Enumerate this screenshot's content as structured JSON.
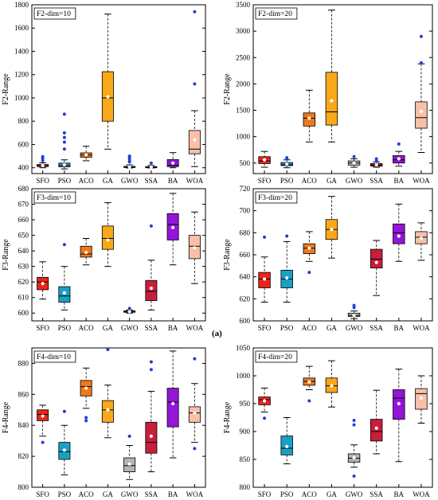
{
  "figure_label": "(a)",
  "chart_data": [
    {
      "type": "box",
      "title": "F2-dim=10",
      "ylabel": "F2-Range",
      "xlabel": "",
      "ylim": [
        350,
        1800
      ],
      "yticks": [
        400,
        600,
        800,
        1000,
        1200,
        1400,
        1600,
        1800
      ],
      "categories": [
        "SFO",
        "PSO",
        "ACO",
        "GA",
        "GWO",
        "SSA",
        "BA",
        "WOA"
      ],
      "colors": [
        "#e8241c",
        "#1aa0c4",
        "#f07818",
        "#f8a818",
        "#b4b4b4",
        "#c81e3c",
        "#9414d8",
        "#f8c0a8"
      ],
      "boxes": [
        {
          "whislo": 400,
          "q1": 410,
          "med": 418,
          "q3": 428,
          "whishi": 442,
          "mean": 420,
          "outliers": [
            460,
            480,
            495
          ]
        },
        {
          "whislo": 390,
          "q1": 408,
          "med": 420,
          "q3": 440,
          "whishi": 468,
          "mean": 425,
          "outliers": [
            560,
            620,
            660,
            700,
            860
          ]
        },
        {
          "whislo": 460,
          "q1": 490,
          "med": 510,
          "q3": 528,
          "whishi": 585,
          "mean": 512,
          "outliers": []
        },
        {
          "whislo": 560,
          "q1": 800,
          "med": 1000,
          "q3": 1225,
          "whishi": 1720,
          "mean": 1010,
          "outliers": []
        },
        {
          "whislo": 398,
          "q1": 402,
          "med": 406,
          "q3": 412,
          "whishi": 425,
          "mean": 406,
          "outliers": [
            450,
            470,
            490,
            500
          ]
        },
        {
          "whislo": 398,
          "q1": 402,
          "med": 405,
          "q3": 410,
          "whishi": 420,
          "mean": 405,
          "outliers": [
            440
          ]
        },
        {
          "whislo": 400,
          "q1": 410,
          "med": 420,
          "q3": 470,
          "whishi": 530,
          "mean": 440,
          "outliers": []
        },
        {
          "whislo": 410,
          "q1": 520,
          "med": 560,
          "q3": 720,
          "whishi": 890,
          "mean": 640,
          "outliers": [
            1120,
            1740
          ]
        }
      ]
    },
    {
      "type": "box",
      "title": "F2-dim=20",
      "ylabel": "F2-Range",
      "xlabel": "",
      "ylim": [
        300,
        3500
      ],
      "yticks": [
        500,
        1000,
        1500,
        2000,
        2500,
        3000,
        3500
      ],
      "categories": [
        "SFO",
        "PSO",
        "ACO",
        "GA",
        "GWO",
        "SSA",
        "BA",
        "WOA"
      ],
      "colors": [
        "#e8241c",
        "#1aa0c4",
        "#f07818",
        "#f8a818",
        "#b4b4b4",
        "#c81e3c",
        "#9414d8",
        "#f8c0a8"
      ],
      "boxes": [
        {
          "whislo": 420,
          "q1": 490,
          "med": 540,
          "q3": 620,
          "whishi": 720,
          "mean": 560,
          "outliers": []
        },
        {
          "whislo": 410,
          "q1": 450,
          "med": 470,
          "q3": 510,
          "whishi": 560,
          "mean": 480,
          "outliers": [
            580,
            600
          ]
        },
        {
          "whislo": 900,
          "q1": 1200,
          "med": 1350,
          "q3": 1450,
          "whishi": 1880,
          "mean": 1350,
          "outliers": []
        },
        {
          "whislo": 900,
          "q1": 1220,
          "med": 1470,
          "q3": 2220,
          "whishi": 3400,
          "mean": 1680,
          "outliers": []
        },
        {
          "whislo": 420,
          "q1": 460,
          "med": 500,
          "q3": 540,
          "whishi": 580,
          "mean": 500,
          "outliers": [
            620
          ]
        },
        {
          "whislo": 420,
          "q1": 440,
          "med": 460,
          "q3": 490,
          "whishi": 520,
          "mean": 465,
          "outliers": [
            540,
            580
          ]
        },
        {
          "whislo": 440,
          "q1": 500,
          "med": 560,
          "q3": 640,
          "whishi": 720,
          "mean": 580,
          "outliers": [
            860
          ]
        },
        {
          "whislo": 700,
          "q1": 1160,
          "med": 1360,
          "q3": 1660,
          "whishi": 2380,
          "mean": 1480,
          "outliers": [
            2400,
            2900
          ]
        }
      ]
    },
    {
      "type": "box",
      "title": "F3-dim=10",
      "ylabel": "F3-Range",
      "xlabel": "",
      "ylim": [
        595,
        680
      ],
      "yticks": [
        600,
        610,
        620,
        630,
        640,
        650,
        660,
        670,
        680
      ],
      "categories": [
        "SFO",
        "PSO",
        "ACO",
        "GA",
        "GWO",
        "SSA",
        "BA",
        "WOA"
      ],
      "colors": [
        "#e8241c",
        "#1aa0c4",
        "#f07818",
        "#f8a818",
        "#b4b4b4",
        "#c81e3c",
        "#9414d8",
        "#f8c0a8"
      ],
      "boxes": [
        {
          "whislo": 609,
          "q1": 615,
          "med": 620,
          "q3": 623,
          "whishi": 633,
          "mean": 619,
          "outliers": []
        },
        {
          "whislo": 602,
          "q1": 607,
          "med": 611,
          "q3": 617,
          "whishi": 630,
          "mean": 613,
          "outliers": [
            644
          ]
        },
        {
          "whislo": 631,
          "q1": 636,
          "med": 638,
          "q3": 643,
          "whishi": 648,
          "mean": 639,
          "outliers": []
        },
        {
          "whislo": 630,
          "q1": 641,
          "med": 648,
          "q3": 656,
          "whishi": 671,
          "mean": 647,
          "outliers": []
        },
        {
          "whislo": 600,
          "q1": 600.5,
          "med": 601,
          "q3": 601.5,
          "whishi": 602,
          "mean": 601,
          "outliers": [
            603
          ]
        },
        {
          "whislo": 602,
          "q1": 608,
          "med": 614,
          "q3": 621,
          "whishi": 634,
          "mean": 616,
          "outliers": [
            656
          ]
        },
        {
          "whislo": 631,
          "q1": 647,
          "med": 657,
          "q3": 664,
          "whishi": 677,
          "mean": 655,
          "outliers": []
        },
        {
          "whislo": 619,
          "q1": 635,
          "med": 643,
          "q3": 650,
          "whishi": 665,
          "mean": 642,
          "outliers": []
        }
      ]
    },
    {
      "type": "box",
      "title": "F3-dim=20",
      "ylabel": "F3-Range",
      "xlabel": "",
      "ylim": [
        600,
        720
      ],
      "yticks": [
        600,
        620,
        640,
        660,
        680,
        700,
        720
      ],
      "categories": [
        "SFO",
        "PSO",
        "ACO",
        "GA",
        "GWO",
        "SSA",
        "BA",
        "WOA"
      ],
      "colors": [
        "#e8241c",
        "#1aa0c4",
        "#f07818",
        "#f8a818",
        "#b4b4b4",
        "#c81e3c",
        "#9414d8",
        "#f8c0a8"
      ],
      "boxes": [
        {
          "whislo": 617,
          "q1": 630,
          "med": 638,
          "q3": 644,
          "whishi": 658,
          "mean": 638,
          "outliers": [
            676
          ]
        },
        {
          "whislo": 617,
          "q1": 630,
          "med": 638,
          "q3": 646,
          "whishi": 672,
          "mean": 639,
          "outliers": [
            677
          ]
        },
        {
          "whislo": 654,
          "q1": 661,
          "med": 666,
          "q3": 670,
          "whishi": 681,
          "mean": 666,
          "outliers": [
            644
          ]
        },
        {
          "whislo": 657,
          "q1": 674,
          "med": 683,
          "q3": 692,
          "whishi": 713,
          "mean": 683,
          "outliers": []
        },
        {
          "whislo": 602,
          "q1": 604,
          "med": 605,
          "q3": 607,
          "whishi": 609,
          "mean": 605,
          "outliers": [
            612,
            614
          ]
        },
        {
          "whislo": 623,
          "q1": 648,
          "med": 656,
          "q3": 665,
          "whishi": 673,
          "mean": 653,
          "outliers": []
        },
        {
          "whislo": 654,
          "q1": 670,
          "med": 680,
          "q3": 688,
          "whishi": 706,
          "mean": 677,
          "outliers": []
        },
        {
          "whislo": 655,
          "q1": 670,
          "med": 676,
          "q3": 681,
          "whishi": 689,
          "mean": 675,
          "outliers": []
        }
      ]
    },
    {
      "type": "box",
      "title": "F4-dim=10",
      "ylabel": "F4-Range",
      "xlabel": "",
      "ylim": [
        800,
        890
      ],
      "yticks": [
        800,
        820,
        840,
        860,
        880
      ],
      "categories": [
        "SFO",
        "PSO",
        "ACO",
        "GA",
        "GWO",
        "SSA",
        "BA",
        "WOA"
      ],
      "colors": [
        "#e8241c",
        "#1aa0c4",
        "#f07818",
        "#f8a818",
        "#b4b4b4",
        "#c81e3c",
        "#9414d8",
        "#f8c0a8"
      ],
      "boxes": [
        {
          "whislo": 833,
          "q1": 843,
          "med": 847,
          "q3": 850,
          "whishi": 853,
          "mean": 846,
          "outliers": [
            829
          ]
        },
        {
          "whislo": 808,
          "q1": 818,
          "med": 823,
          "q3": 829,
          "whishi": 840,
          "mean": 824,
          "outliers": [
            849
          ]
        },
        {
          "whislo": 851,
          "q1": 859,
          "med": 865,
          "q3": 869,
          "whishi": 877,
          "mean": 864,
          "outliers": [
            845,
            843
          ]
        },
        {
          "whislo": 832,
          "q1": 842,
          "med": 850,
          "q3": 856,
          "whishi": 866,
          "mean": 850,
          "outliers": [
            889
          ]
        },
        {
          "whislo": 805,
          "q1": 810,
          "med": 814,
          "q3": 819,
          "whishi": 827,
          "mean": 815,
          "outliers": [
            833
          ]
        },
        {
          "whislo": 810,
          "q1": 822,
          "med": 829,
          "q3": 842,
          "whishi": 862,
          "mean": 833,
          "outliers": [
            876,
            881
          ]
        },
        {
          "whislo": 819,
          "q1": 839,
          "med": 855,
          "q3": 864,
          "whishi": 888,
          "mean": 854,
          "outliers": []
        },
        {
          "whislo": 829,
          "q1": 842,
          "med": 848,
          "q3": 852,
          "whishi": 867,
          "mean": 848,
          "outliers": [
            825,
            883
          ]
        }
      ]
    },
    {
      "type": "box",
      "title": "F4-dim=20",
      "ylabel": "F4-Range",
      "xlabel": "",
      "ylim": [
        800,
        1050
      ],
      "yticks": [
        800,
        850,
        900,
        950,
        1000,
        1050
      ],
      "categories": [
        "SFO",
        "PSO",
        "ACO",
        "GA",
        "GWO",
        "SSA",
        "BA",
        "WOA"
      ],
      "colors": [
        "#e8241c",
        "#1aa0c4",
        "#f07818",
        "#f8a818",
        "#b4b4b4",
        "#c81e3c",
        "#9414d8",
        "#f8c0a8"
      ],
      "boxes": [
        {
          "whislo": 935,
          "q1": 948,
          "med": 957,
          "q3": 962,
          "whishi": 978,
          "mean": 955,
          "outliers": [
            924
          ]
        },
        {
          "whislo": 842,
          "q1": 858,
          "med": 870,
          "q3": 892,
          "whishi": 925,
          "mean": 873,
          "outliers": []
        },
        {
          "whislo": 975,
          "q1": 983,
          "med": 990,
          "q3": 996,
          "whishi": 1017,
          "mean": 989,
          "outliers": [
            955
          ]
        },
        {
          "whislo": 944,
          "q1": 970,
          "med": 982,
          "q3": 996,
          "whishi": 1027,
          "mean": 982,
          "outliers": []
        },
        {
          "whislo": 836,
          "q1": 845,
          "med": 852,
          "q3": 860,
          "whishi": 876,
          "mean": 853,
          "outliers": [
            912,
            920,
            820
          ]
        },
        {
          "whislo": 860,
          "q1": 883,
          "med": 900,
          "q3": 922,
          "whishi": 974,
          "mean": 906,
          "outliers": []
        },
        {
          "whislo": 846,
          "q1": 922,
          "med": 960,
          "q3": 975,
          "whishi": 1012,
          "mean": 950,
          "outliers": []
        },
        {
          "whislo": 915,
          "q1": 940,
          "med": 968,
          "q3": 977,
          "whishi": 1000,
          "mean": 960,
          "outliers": []
        }
      ]
    }
  ]
}
